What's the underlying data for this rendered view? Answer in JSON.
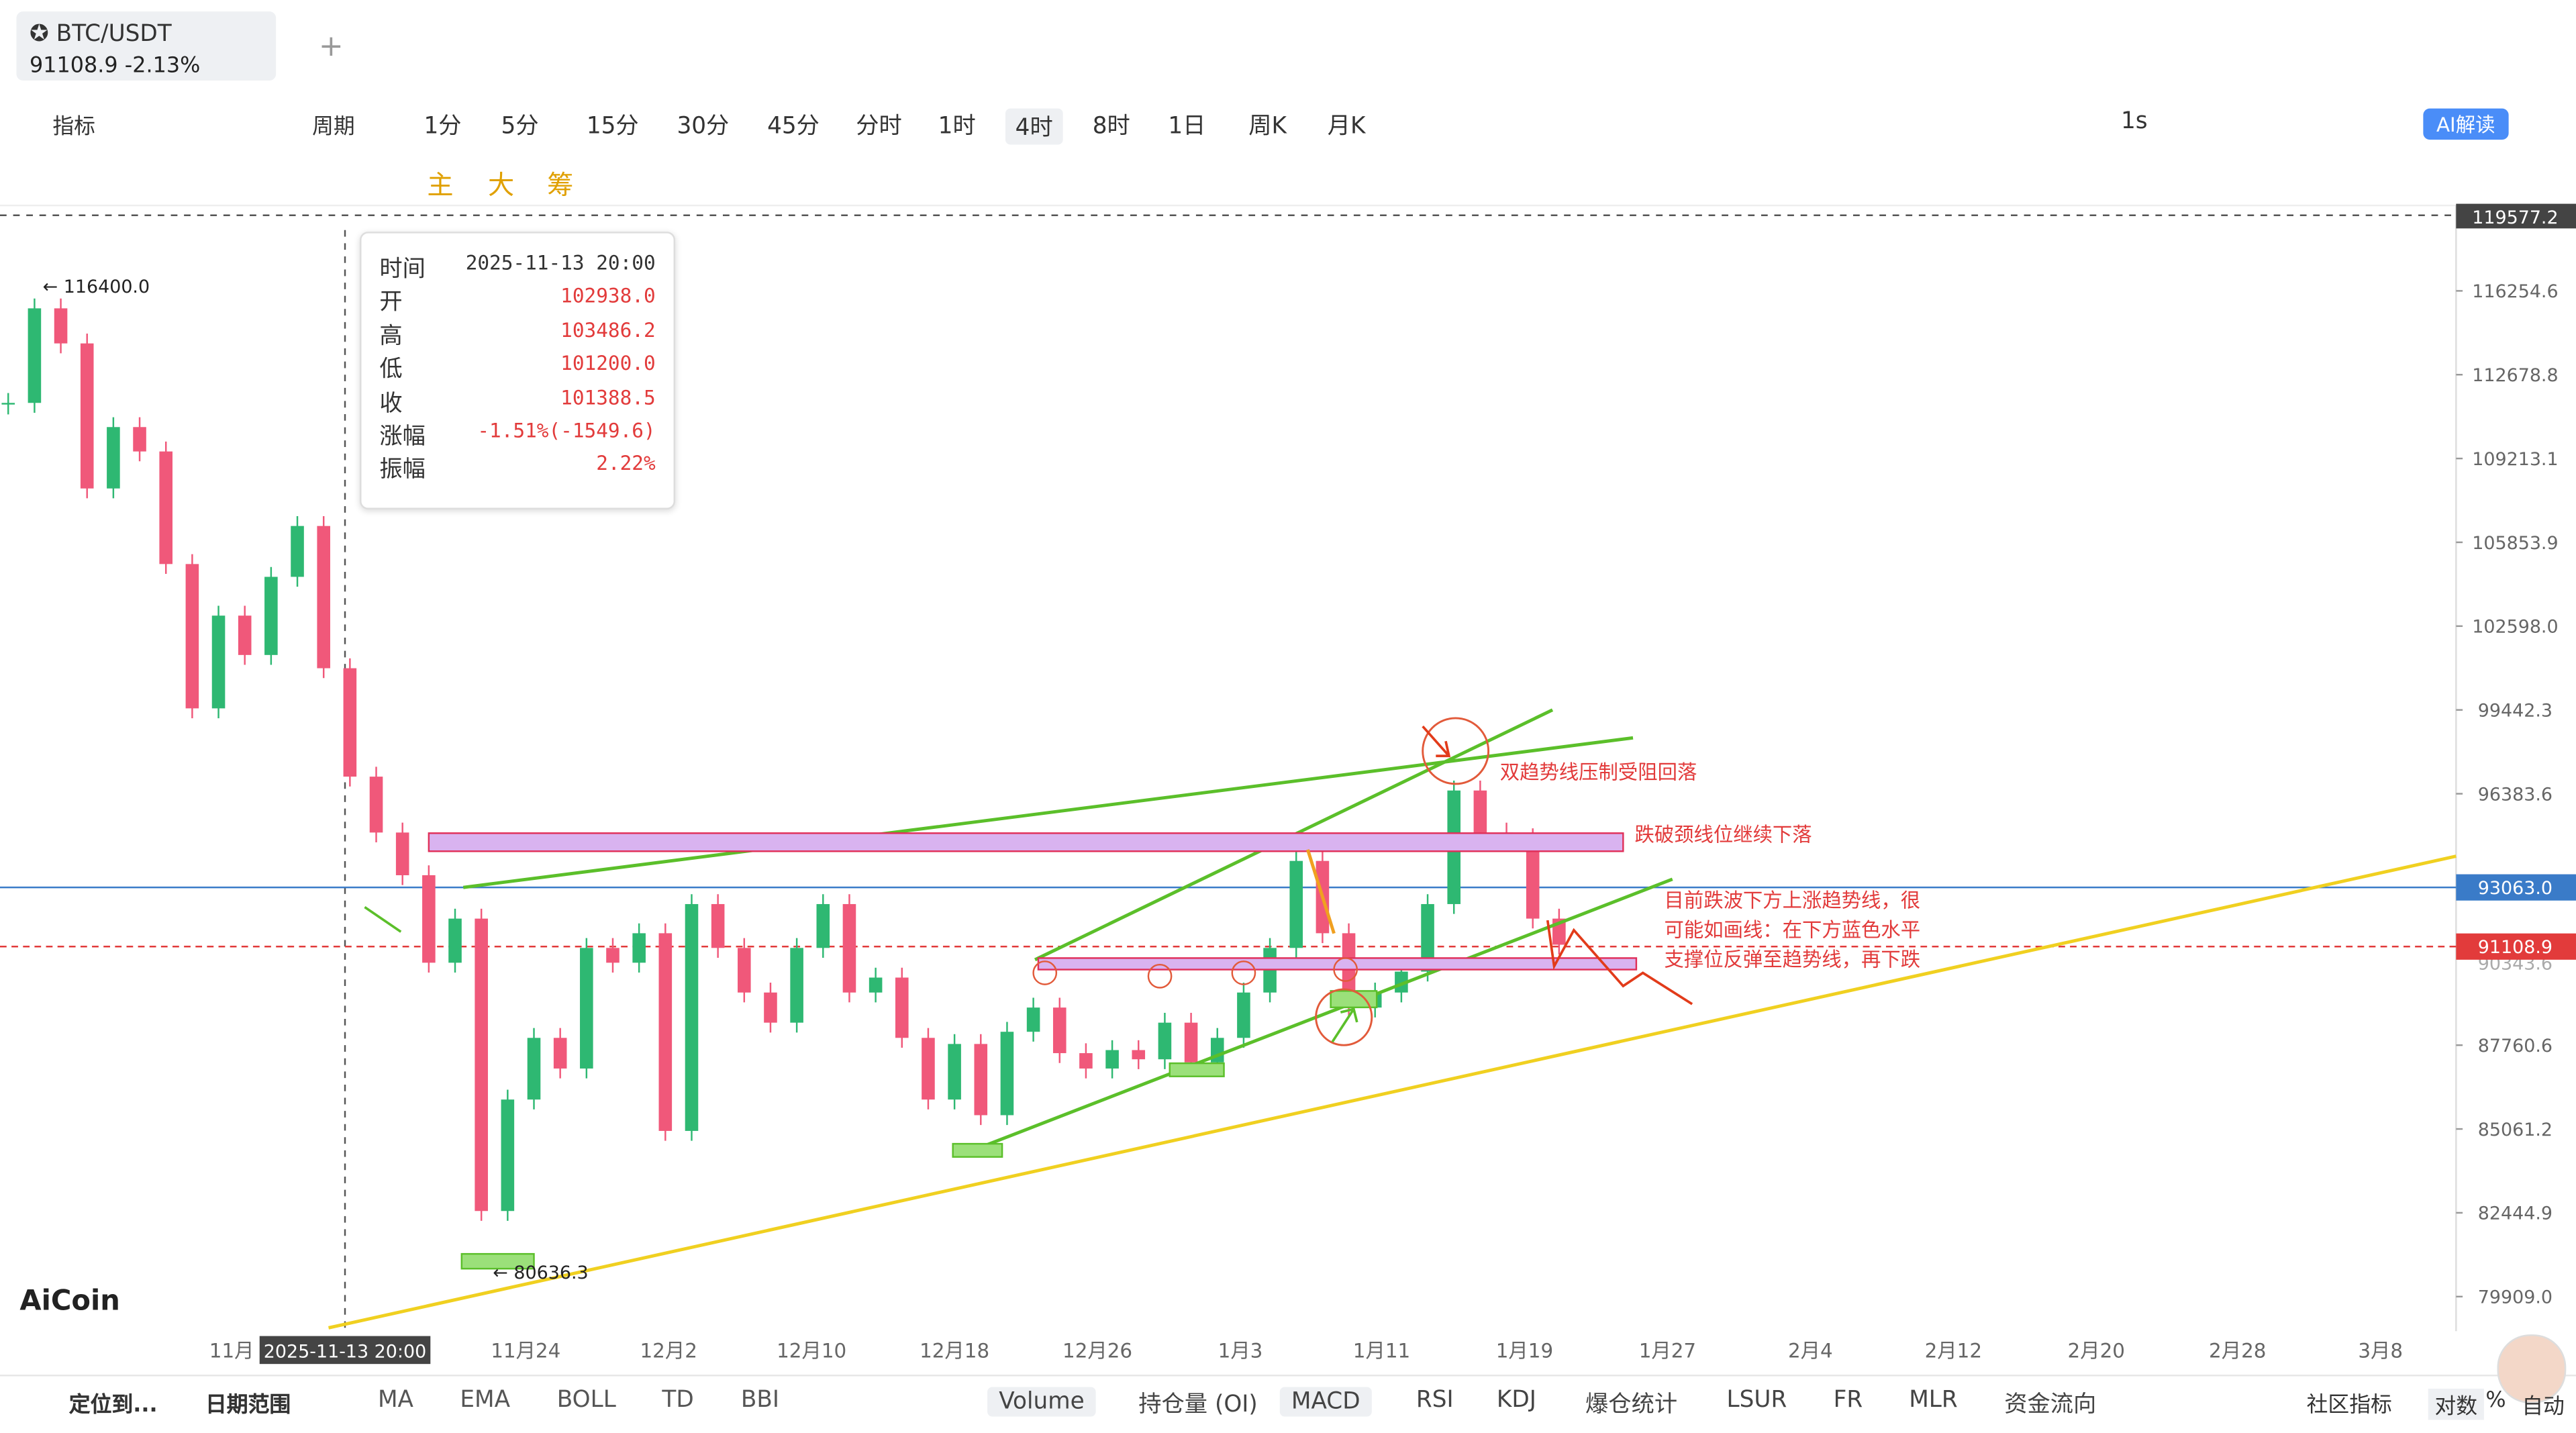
{
  "tab": {
    "symbol": "BTC/USDT",
    "price": "91108.9",
    "change": "-2.13%"
  },
  "toolbar": {
    "indicator": "指标",
    "period": "周期",
    "periods": [
      "1分",
      "5分",
      "15分",
      "30分",
      "45分",
      "分时",
      "1时",
      "4时",
      "8时",
      "1日",
      "周K",
      "月K"
    ],
    "interval": "1s",
    "ai": "AI解读"
  },
  "drawbar": {
    "chars": [
      "主",
      "大",
      "筹"
    ]
  },
  "tooltip": {
    "rows": [
      [
        "时间",
        "2025-11-13 20:00"
      ],
      [
        "开",
        "102938.0"
      ],
      [
        "高",
        "103486.2"
      ],
      [
        "低",
        "101200.0"
      ],
      [
        "收",
        "101388.5"
      ],
      [
        "涨幅",
        "-1.51%(-1549.6)"
      ],
      [
        "振幅",
        "2.22%"
      ]
    ]
  },
  "chart": {
    "log_scale": true,
    "yticks": [
      116254.6,
      112678.8,
      109213.1,
      105853.9,
      {
        "value": 102598,
        "label": "102598.0"
      },
      99442.3,
      96383.6,
      87760.6,
      85061.2,
      82444.9,
      {
        "value": 79909,
        "label": "79909.0"
      }
    ],
    "xlabels": [
      "11月",
      "11月24",
      "12月2",
      "12月10",
      "12月18",
      "12月26",
      "1月3",
      "1月11",
      "1月19",
      "1月27",
      "2月4",
      "2月12",
      "2月20",
      "2月28",
      "3月8"
    ],
    "crosshair_time": "2025-11-13 20:00",
    "crosshair_price": "119577.2",
    "line_price": "93063.0",
    "last_price": "91108.9",
    "hidden_price": "90343.6",
    "high_marker": "116400.0",
    "low_marker": "80636.3",
    "closes": [
      111500,
      115500,
      114000,
      108000,
      110500,
      109500,
      105000,
      99500,
      103000,
      101500,
      104500,
      106500,
      101000,
      97000,
      95000,
      93500,
      90500,
      92000,
      82500,
      86000,
      88000,
      87000,
      91000,
      90500,
      91500,
      85000,
      92500,
      91000,
      89500,
      88500,
      91000,
      92500,
      89500,
      90000,
      88000,
      86000,
      87800,
      85500,
      88200,
      89000,
      87500,
      87000,
      87600,
      87300,
      88500,
      87200,
      88000,
      89500,
      91000,
      94000,
      91500,
      89000,
      89500,
      90200,
      92500,
      96500,
      95000,
      94800,
      92000,
      91108.9
    ],
    "annotations": [
      "双趋势线压制受阻回落",
      "跌破颈线位继续下落",
      "目前跌波下方上涨趋势线，很",
      "可能如画线：在下方蓝色水平",
      "支撑位反弹至趋势线，再下跌"
    ]
  },
  "brand": "AiCoin",
  "bottombar": {
    "locate": "定位到...",
    "range": "日期范围",
    "main": [
      "MA",
      "EMA",
      "BOLL",
      "TD",
      "BBI"
    ],
    "sub": [
      "Volume",
      "持仓量 (OI)",
      "MACD",
      "RSI",
      "KDJ",
      "爆仓统计",
      "LSUR",
      "FR",
      "MLR",
      "资金流向"
    ],
    "community": "社区指标",
    "log": "对数",
    "pct": "%",
    "auto": "自动"
  }
}
